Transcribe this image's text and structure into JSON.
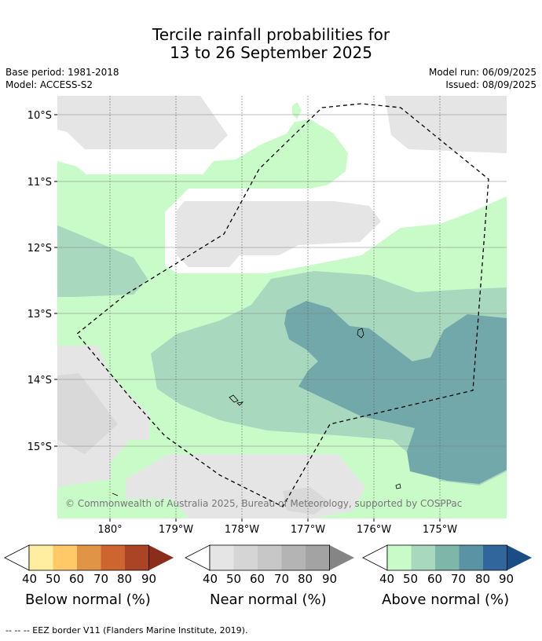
{
  "title_line1": "Tercile rainfall probabilities for",
  "title_line2": "13 to 26 September 2025",
  "base_period": "Base period: 1981-2018",
  "model": "Model: ACCESS-S2",
  "model_run": "Model run: 06/09/2025",
  "issued": "Issued: 08/09/2025",
  "lat_labels": [
    "10°S",
    "11°S",
    "12°S",
    "13°S",
    "14°S",
    "15°S"
  ],
  "lon_labels": [
    "180°",
    "179°W",
    "178°W",
    "177°W",
    "176°W",
    "175°W"
  ],
  "copyright": "© Commonwealth of Australia 2025, Bureau of Meteorology, supported by COSPPac",
  "colorbars": [
    {
      "title": "Below normal (%)",
      "ticks": [
        "40",
        "50",
        "60",
        "70",
        "80",
        "90"
      ],
      "colors": [
        "#ffeea0",
        "#fec966",
        "#e09546",
        "#cd6531",
        "#ab4424",
        "#8a2d1a"
      ]
    },
    {
      "title": "Near normal (%)",
      "ticks": [
        "40",
        "50",
        "60",
        "70",
        "80",
        "90"
      ],
      "colors": [
        "#e5e5e5",
        "#d5d5d5",
        "#c7c7c7",
        "#b4b4b4",
        "#a3a3a3",
        "#858585"
      ]
    },
    {
      "title": "Above normal (%)",
      "ticks": [
        "40",
        "50",
        "60",
        "70",
        "80",
        "90"
      ],
      "colors": [
        "#c9fbc9",
        "#a8d8be",
        "#7fb6aa",
        "#5a93a3",
        "#31669c",
        "#1a4c86"
      ]
    }
  ],
  "footnote": "-- -- -- EEZ border V11 (Flanders Marine Institute, 2019)."
}
